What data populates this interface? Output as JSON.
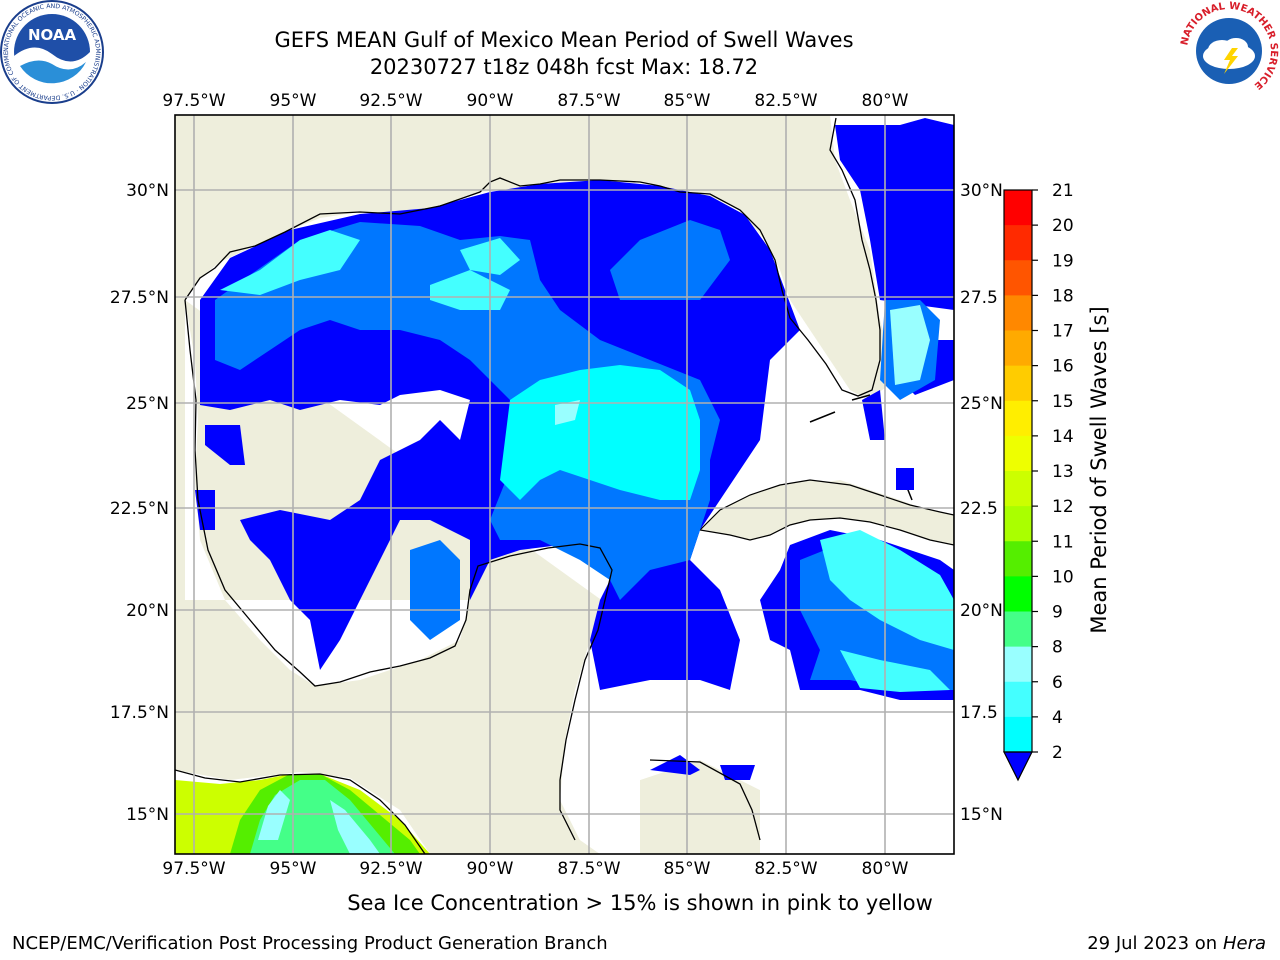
{
  "header": {
    "title_line1": "GEFS MEAN Gulf of Mexico Mean Period of Swell Waves",
    "title_line2": "20230727 t18z 048h fcst   Max: 18.72"
  },
  "logos": {
    "noaa_text": "NOAA",
    "noaa_ring": "NATIONAL OCEANIC AND ATMOSPHERIC ADMINISTRATION · U.S. DEPARTMENT OF COMMERCE",
    "nws_ring": "NATIONAL WEATHER SERVICE"
  },
  "map": {
    "lon_labels": [
      "97.5°W",
      "95°W",
      "92.5°W",
      "90°W",
      "87.5°W",
      "85°W",
      "82.5°W",
      "80°W"
    ],
    "lat_labels_left": [
      "30°N",
      "27.5°N",
      "25°N",
      "22.5°N",
      "20°N",
      "17.5°N",
      "15°N"
    ],
    "lat_labels_right": [
      "30°N",
      "27.5",
      "25°N",
      "22.5",
      "20°N",
      "17.5",
      "15°N"
    ],
    "colors": {
      "land": "#eeeedc",
      "ocean_no_data": "#ffffff",
      "grid": "#b0b0b0"
    }
  },
  "colorbar": {
    "label": "Mean Period of Swell Waves [s]",
    "ticks": [
      "2",
      "4",
      "6",
      "8",
      "9",
      "10",
      "11",
      "12",
      "13",
      "14",
      "15",
      "16",
      "17",
      "18",
      "19",
      "20",
      "21"
    ],
    "colors": [
      "#0000ff",
      "#0077ff",
      "#00ffff",
      "#44ffff",
      "#99ffff",
      "#44ff88",
      "#00ff00",
      "#55ee00",
      "#aaff00",
      "#ccff00",
      "#eeff00",
      "#ffee00",
      "#ffcc00",
      "#ffaa00",
      "#ff8800",
      "#ff5500",
      "#ff2a00",
      "#ff0000"
    ]
  },
  "footer": {
    "caption": "Sea Ice Concentration > 15% is shown in pink to yellow",
    "credit": "NCEP/EMC/Verification Post Processing Product Generation Branch",
    "date": "29 Jul 2023 on",
    "host": "Hera"
  }
}
